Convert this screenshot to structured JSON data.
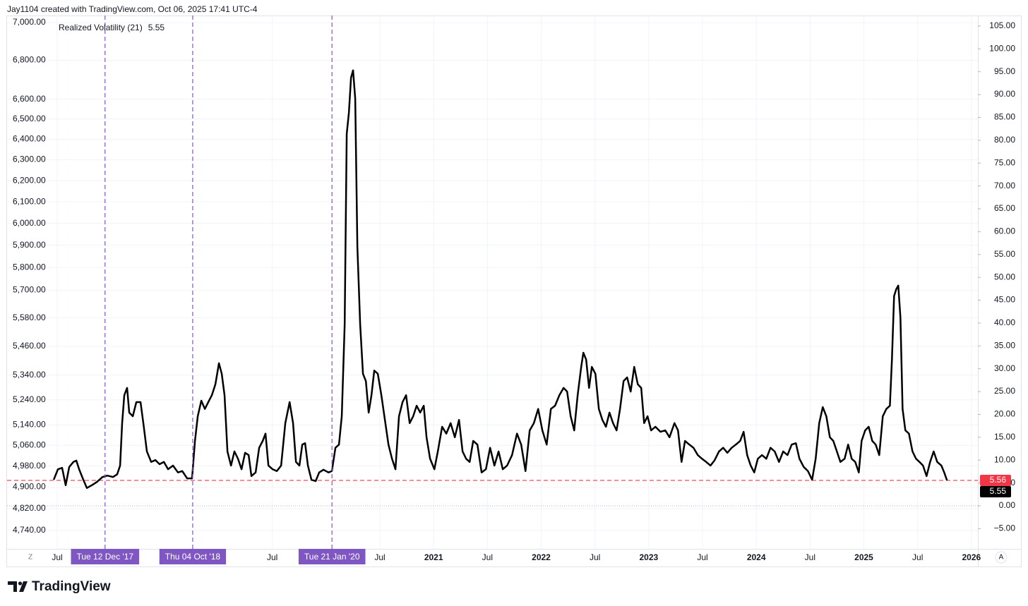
{
  "header": {
    "attribution": "Jay1104 created with TradingView.com, Oct 06, 2025 17:41 UTC-4"
  },
  "chart_data": {
    "type": "line",
    "last_value": 5.55,
    "x": [
      2017.468,
      2017.507,
      2017.546,
      2017.579,
      2017.612,
      2017.651,
      2017.678,
      2017.704,
      2017.743,
      2017.776,
      2017.822,
      2017.868,
      2017.921,
      2017.967,
      2018.019,
      2018.058,
      2018.085,
      2018.104,
      2018.124,
      2018.15,
      2018.17,
      2018.203,
      2018.236,
      2018.275,
      2018.301,
      2018.334,
      2018.374,
      2018.413,
      2018.452,
      2018.492,
      2018.531,
      2018.577,
      2018.623,
      2018.663,
      2018.708,
      2018.754,
      2018.781,
      2018.807,
      2018.84,
      2018.873,
      2018.905,
      2018.938,
      2018.971,
      2019.004,
      2019.03,
      2019.056,
      2019.083,
      2019.116,
      2019.148,
      2019.181,
      2019.214,
      2019.247,
      2019.28,
      2019.306,
      2019.345,
      2019.378,
      2019.411,
      2019.437,
      2019.464,
      2019.503,
      2019.542,
      2019.582,
      2019.621,
      2019.661,
      2019.693,
      2019.72,
      2019.752,
      2019.779,
      2019.805,
      2019.831,
      2019.864,
      2019.903,
      2019.936,
      2019.976,
      2020.022,
      2020.054,
      2020.087,
      2020.12,
      2020.146,
      2020.173,
      2020.192,
      2020.212,
      2020.232,
      2020.251,
      2020.271,
      2020.291,
      2020.317,
      2020.343,
      2020.37,
      2020.396,
      2020.422,
      2020.448,
      2020.481,
      2020.514,
      2020.547,
      2020.58,
      2020.613,
      2020.645,
      2020.678,
      2020.711,
      2020.744,
      2020.777,
      2020.81,
      2020.842,
      2020.875,
      2020.908,
      2020.934,
      2020.967,
      2021.007,
      2021.039,
      2021.079,
      2021.118,
      2021.158,
      2021.197,
      2021.236,
      2021.269,
      2021.302,
      2021.335,
      2021.368,
      2021.407,
      2021.446,
      2021.486,
      2021.525,
      2021.565,
      2021.604,
      2021.643,
      2021.683,
      2021.729,
      2021.775,
      2021.814,
      2021.854,
      2021.893,
      2021.932,
      2021.972,
      2022.011,
      2022.051,
      2022.09,
      2022.129,
      2022.169,
      2022.208,
      2022.241,
      2022.274,
      2022.307,
      2022.339,
      2022.372,
      2022.392,
      2022.418,
      2022.445,
      2022.471,
      2022.504,
      2022.536,
      2022.569,
      2022.602,
      2022.635,
      2022.668,
      2022.701,
      2022.733,
      2022.766,
      2022.799,
      2022.832,
      2022.865,
      2022.898,
      2022.93,
      2022.957,
      2022.989,
      2023.022,
      2023.062,
      2023.108,
      2023.154,
      2023.193,
      2023.239,
      2023.272,
      2023.305,
      2023.337,
      2023.377,
      2023.416,
      2023.456,
      2023.495,
      2023.534,
      2023.574,
      2023.613,
      2023.653,
      2023.692,
      2023.731,
      2023.771,
      2023.81,
      2023.85,
      2023.882,
      2023.915,
      2023.948,
      2023.981,
      2024.014,
      2024.053,
      2024.093,
      2024.132,
      2024.171,
      2024.211,
      2024.25,
      2024.29,
      2024.329,
      2024.368,
      2024.401,
      2024.441,
      2024.48,
      2024.519,
      2024.552,
      2024.585,
      2024.618,
      2024.651,
      2024.684,
      2024.716,
      2024.749,
      2024.782,
      2024.821,
      2024.854,
      2024.887,
      2024.92,
      2024.953,
      2024.979,
      2025.012,
      2025.045,
      2025.078,
      2025.11,
      2025.143,
      2025.176,
      2025.209,
      2025.242,
      2025.261,
      2025.281,
      2025.301,
      2025.32,
      2025.34,
      2025.36,
      2025.386,
      2025.419,
      2025.452,
      2025.485,
      2025.517,
      2025.55,
      2025.583,
      2025.616,
      2025.649,
      2025.682,
      2025.721,
      2025.747,
      2025.773
    ],
    "series": [
      {
        "name": "Realized Volatility (21)",
        "color": "#000000",
        "axis": "y2",
        "values": [
          5.7,
          8.0,
          8.3,
          4.5,
          8.5,
          9.6,
          9.9,
          8.0,
          5.7,
          3.9,
          4.5,
          5.2,
          6.3,
          6.6,
          6.3,
          6.9,
          8.8,
          18.1,
          24.2,
          25.8,
          20.4,
          19.6,
          22.7,
          22.7,
          18.1,
          11.9,
          9.6,
          10.0,
          9.1,
          9.6,
          8.0,
          8.8,
          7.3,
          7.6,
          6.0,
          6.0,
          14.2,
          19.6,
          23.0,
          21.2,
          22.7,
          24.2,
          26.6,
          31.2,
          28.9,
          24.2,
          11.9,
          8.8,
          11.9,
          10.3,
          8.0,
          11.6,
          11.1,
          6.5,
          7.3,
          12.7,
          14.2,
          15.8,
          8.8,
          8.0,
          7.6,
          8.8,
          18.1,
          22.7,
          18.1,
          9.6,
          8.8,
          13.4,
          13.7,
          8.8,
          5.7,
          5.4,
          7.3,
          7.9,
          7.3,
          7.6,
          12.7,
          13.4,
          19.6,
          39.7,
          81.4,
          86.0,
          93.7,
          95.3,
          89.1,
          56.7,
          39.7,
          28.9,
          27.3,
          20.4,
          24.2,
          29.6,
          28.9,
          24.2,
          18.8,
          13.4,
          10.3,
          8.0,
          19.6,
          22.7,
          24.2,
          18.1,
          19.6,
          21.9,
          20.4,
          21.9,
          15.0,
          10.3,
          8.0,
          11.9,
          17.3,
          15.8,
          18.1,
          15.0,
          18.8,
          11.9,
          10.3,
          9.6,
          14.2,
          13.4,
          7.3,
          8.0,
          12.7,
          8.8,
          11.9,
          8.0,
          8.8,
          11.1,
          15.8,
          13.4,
          7.6,
          16.5,
          18.1,
          21.2,
          16.5,
          13.4,
          21.2,
          21.9,
          24.2,
          25.8,
          25.0,
          19.6,
          16.5,
          24.2,
          30.4,
          33.5,
          32.0,
          25.8,
          30.4,
          28.9,
          21.2,
          18.8,
          17.3,
          20.4,
          18.1,
          16.5,
          21.2,
          27.3,
          28.1,
          25.0,
          30.4,
          26.6,
          25.8,
          18.1,
          19.6,
          16.5,
          17.3,
          16.2,
          16.5,
          15.0,
          18.1,
          16.5,
          9.6,
          14.2,
          13.4,
          12.7,
          11.1,
          10.3,
          9.6,
          8.8,
          10.0,
          11.9,
          12.7,
          11.6,
          12.7,
          13.4,
          14.2,
          16.2,
          11.1,
          8.8,
          7.3,
          10.3,
          11.1,
          10.3,
          12.7,
          11.9,
          9.6,
          11.9,
          11.1,
          13.4,
          13.7,
          10.3,
          8.5,
          7.6,
          5.7,
          10.3,
          18.1,
          21.6,
          19.6,
          15.0,
          14.2,
          11.9,
          9.6,
          10.3,
          13.4,
          10.3,
          9.6,
          7.3,
          14.2,
          16.5,
          17.3,
          14.2,
          13.4,
          11.1,
          19.6,
          21.2,
          21.9,
          32.0,
          45.9,
          47.4,
          48.2,
          41.2,
          21.2,
          16.5,
          15.8,
          11.9,
          10.3,
          9.6,
          8.8,
          6.5,
          9.6,
          11.9,
          9.6,
          8.8,
          7.3,
          5.55
        ]
      }
    ],
    "xlim": [
      2017.034,
      2026.06
    ],
    "xticks": [
      {
        "value": 2017.5,
        "label": "Jul"
      },
      {
        "value": 2019.5,
        "label": "Jul"
      },
      {
        "value": 2020.5,
        "label": "Jul"
      },
      {
        "value": 2021,
        "label": "2021"
      },
      {
        "value": 2021.5,
        "label": "Jul"
      },
      {
        "value": 2022,
        "label": "2022"
      },
      {
        "value": 2022.5,
        "label": "Jul"
      },
      {
        "value": 2023,
        "label": "2023"
      },
      {
        "value": 2023.5,
        "label": "Jul"
      },
      {
        "value": 2024,
        "label": "2024"
      },
      {
        "value": 2024.5,
        "label": "Jul"
      },
      {
        "value": 2025,
        "label": "2025"
      },
      {
        "value": 2025.5,
        "label": "Jul"
      },
      {
        "value": 2026,
        "label": "2026"
      }
    ],
    "ylim": [
      4681,
      7038
    ],
    "log_scale": true,
    "yticks": [
      {
        "value": 7000,
        "label": "7,000.00"
      },
      {
        "value": 6800,
        "label": "6,800.00"
      },
      {
        "value": 6600,
        "label": "6,600.00"
      },
      {
        "value": 6500,
        "label": "6,500.00"
      },
      {
        "value": 6400,
        "label": "6,400.00"
      },
      {
        "value": 6300,
        "label": "6,300.00"
      },
      {
        "value": 6200,
        "label": "6,200.00"
      },
      {
        "value": 6100,
        "label": "6,100.00"
      },
      {
        "value": 6000,
        "label": "6,000.00"
      },
      {
        "value": 5900,
        "label": "5,900.00"
      },
      {
        "value": 5800,
        "label": "5,800.00"
      },
      {
        "value": 5700,
        "label": "5,700.00"
      },
      {
        "value": 5580,
        "label": "5,580.00"
      },
      {
        "value": 5460,
        "label": "5,460.00"
      },
      {
        "value": 5340,
        "label": "5,340.00"
      },
      {
        "value": 5240,
        "label": "5,240.00"
      },
      {
        "value": 5140,
        "label": "5,140.00"
      },
      {
        "value": 5060,
        "label": "5,060.00"
      },
      {
        "value": 4980,
        "label": "4,980.00"
      },
      {
        "value": 4900,
        "label": "4,900.00"
      },
      {
        "value": 4820,
        "label": "4,820.00"
      },
      {
        "value": 4740,
        "label": "4,740.00"
      }
    ],
    "y2lim": [
      -8.96,
      107.3
    ],
    "y2ticks": [
      {
        "value": 105,
        "label": "105.00"
      },
      {
        "value": 100,
        "label": "100.00"
      },
      {
        "value": 95,
        "label": "95.00"
      },
      {
        "value": 90,
        "label": "90.00"
      },
      {
        "value": 85,
        "label": "85.00"
      },
      {
        "value": 80,
        "label": "80.00"
      },
      {
        "value": 75,
        "label": "75.00"
      },
      {
        "value": 70,
        "label": "70.00"
      },
      {
        "value": 65,
        "label": "65.00"
      },
      {
        "value": 60,
        "label": "60.00"
      },
      {
        "value": 55,
        "label": "55.00"
      },
      {
        "value": 50,
        "label": "50.00"
      },
      {
        "value": 45,
        "label": "45.00"
      },
      {
        "value": 40,
        "label": "40.00"
      },
      {
        "value": 35,
        "label": "35.00"
      },
      {
        "value": 30,
        "label": "30.00"
      },
      {
        "value": 25,
        "label": "25.00"
      },
      {
        "value": 20,
        "label": "20.00"
      },
      {
        "value": 15,
        "label": "15.00"
      },
      {
        "value": 10,
        "label": "10.00"
      },
      {
        "value": 5,
        "label": "5.00"
      },
      {
        "value": 0,
        "label": "0.00"
      },
      {
        "value": -5,
        "label": "−5.00"
      }
    ],
    "grid": true,
    "baseline": 0,
    "price_line": {
      "value": 5.56,
      "color": "#f23645"
    },
    "markers": [
      {
        "x": 2017.945,
        "label": "Tue 12 Dec '17"
      },
      {
        "x": 2018.76,
        "label": "Thu 04 Oct '18"
      },
      {
        "x": 2020.055,
        "label": "Tue 21 Jan '20"
      }
    ],
    "marker_color": "#7e57c2"
  },
  "buttons": {
    "timezone": "Z",
    "auto_scale": "A"
  },
  "footer": {
    "logo": "TradingView"
  }
}
